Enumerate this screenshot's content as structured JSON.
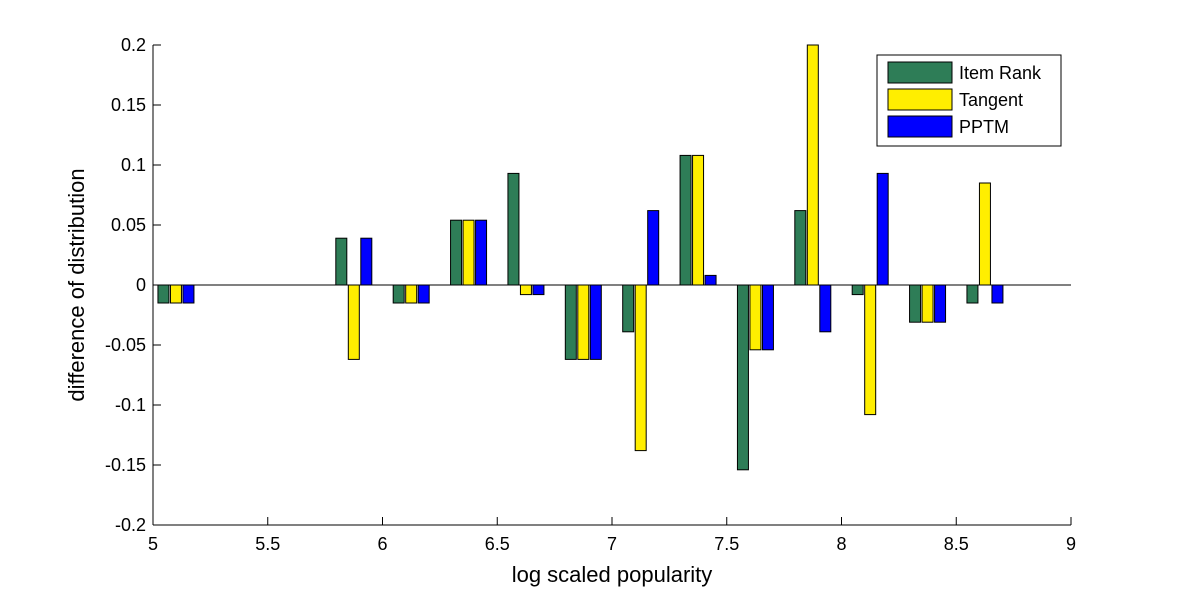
{
  "chart_data": {
    "type": "bar",
    "title": "",
    "xlabel": "log scaled popularity",
    "ylabel": "difference of distribution",
    "xlim": [
      5,
      9
    ],
    "ylim": [
      -0.2,
      0.2
    ],
    "xticks": [
      "5",
      "5.5",
      "6",
      "6.5",
      "7",
      "7.5",
      "8",
      "8.5",
      "9"
    ],
    "yticks": [
      "-0.2",
      "-0.15",
      "-0.1",
      "-0.05",
      "0",
      "0.05",
      "0.1",
      "0.15",
      "0.2"
    ],
    "grid": false,
    "legend_position": "top-right",
    "x": [
      5.1,
      5.35,
      5.6,
      5.875,
      6.125,
      6.375,
      6.625,
      6.875,
      7.125,
      7.375,
      7.625,
      7.875,
      8.125,
      8.375,
      8.625
    ],
    "series": [
      {
        "name": "Item Rank",
        "color": "#2e7d57",
        "values": [
          -0.015,
          0,
          0,
          0.039,
          -0.015,
          0.054,
          0.093,
          -0.062,
          -0.039,
          0.108,
          -0.154,
          0.062,
          -0.008,
          -0.031,
          -0.015
        ]
      },
      {
        "name": "Tangent",
        "color": "#ffee00",
        "values": [
          -0.015,
          0,
          0,
          -0.062,
          -0.015,
          0.054,
          -0.008,
          -0.062,
          -0.138,
          0.108,
          -0.054,
          0.2,
          -0.108,
          -0.031,
          0.085
        ]
      },
      {
        "name": "PPTM",
        "color": "#0000ff",
        "values": [
          -0.015,
          0,
          0,
          0.039,
          -0.015,
          0.054,
          -0.008,
          -0.062,
          0.062,
          0.008,
          -0.054,
          -0.039,
          0.093,
          -0.031,
          -0.015
        ]
      }
    ]
  }
}
